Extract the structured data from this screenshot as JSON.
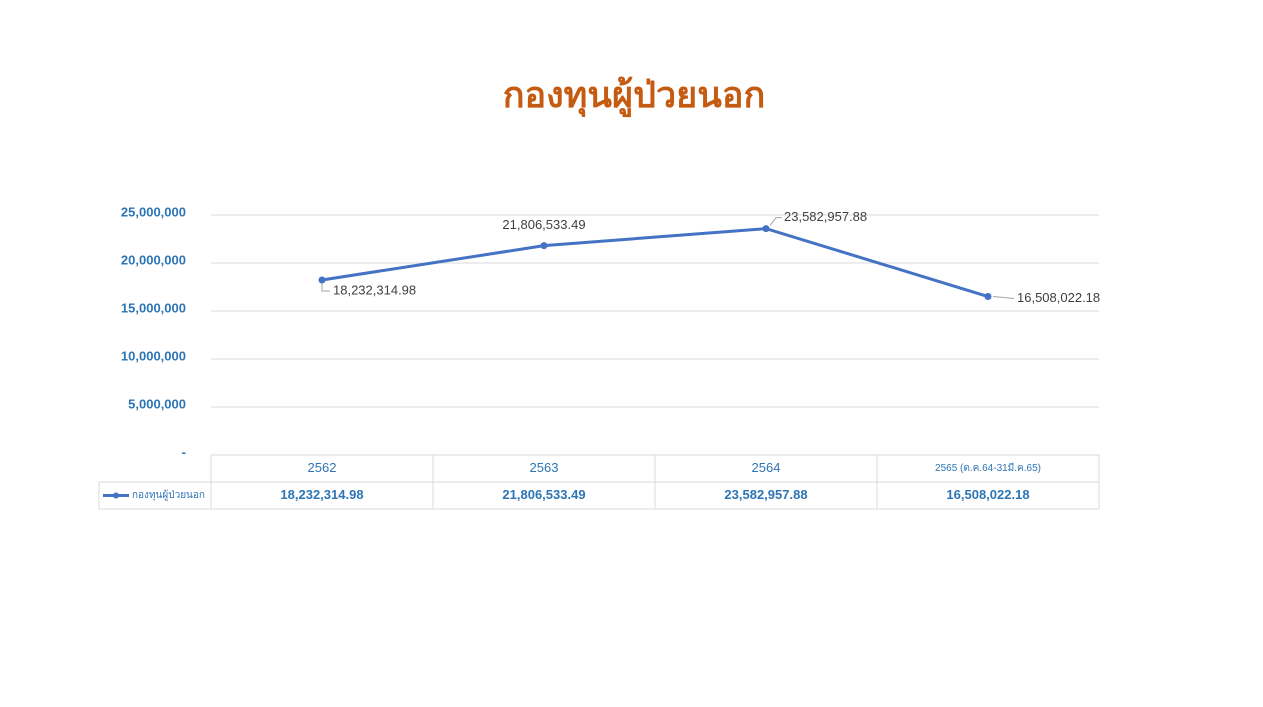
{
  "chart_data": {
    "type": "line",
    "title": "กองทุนผู้ป่วยนอก",
    "categories": [
      "2562",
      "2563",
      "2564",
      "2565 (ต.ค.64-31มี.ค.65)"
    ],
    "series": [
      {
        "name": "กองทุนผู้ป่วยนอก",
        "color": "#4472c4",
        "values": [
          18232314.98,
          21806533.49,
          23582957.88,
          16508022.18
        ],
        "value_labels": [
          "18,232,314.98",
          "21,806,533.49",
          "23,582,957.88",
          "16,508,022.18"
        ]
      }
    ],
    "ylim": [
      0,
      25000000
    ],
    "yticks": [
      {
        "value": 0,
        "label": "-"
      },
      {
        "value": 5000000,
        "label": "5,000,000"
      },
      {
        "value": 10000000,
        "label": "10,000,000"
      },
      {
        "value": 15000000,
        "label": "15,000,000"
      },
      {
        "value": 20000000,
        "label": "20,000,000"
      },
      {
        "value": 25000000,
        "label": "25,000,000"
      }
    ],
    "grid": true,
    "data_table": true
  }
}
